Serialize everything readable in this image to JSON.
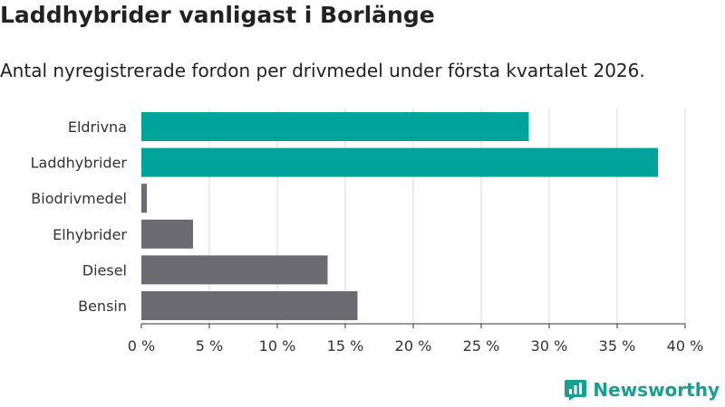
{
  "header": {
    "title": "Laddhybrider vanligast i Borlänge",
    "subtitle": "Antal nyregistrerade fordon per drivmedel under första kvartalet 2026."
  },
  "brand": {
    "name": "Newsworthy",
    "icon": "newsworthy-logo-icon",
    "color": "#17a091"
  },
  "chart_data": {
    "type": "bar",
    "orientation": "horizontal",
    "categories": [
      "Eldrivna",
      "Laddhybrider",
      "Biodrivmedel",
      "Elhybrider",
      "Diesel",
      "Bensin"
    ],
    "values": [
      28.5,
      38,
      0.4,
      3.8,
      13.7,
      15.9
    ],
    "colors": [
      "#00a39a",
      "#00a39a",
      "#6d6b72",
      "#6d6b72",
      "#6d6b72",
      "#6d6b72"
    ],
    "xlim": [
      0,
      40
    ],
    "xticks": [
      0,
      5,
      10,
      15,
      20,
      25,
      30,
      35,
      40
    ],
    "xtick_labels": [
      "0 %",
      "5 %",
      "10 %",
      "15 %",
      "20 %",
      "25 %",
      "30 %",
      "35 %",
      "40 %"
    ],
    "grid": true,
    "title": "Laddhybrider vanligast i Borlänge",
    "xlabel": "",
    "ylabel": ""
  }
}
